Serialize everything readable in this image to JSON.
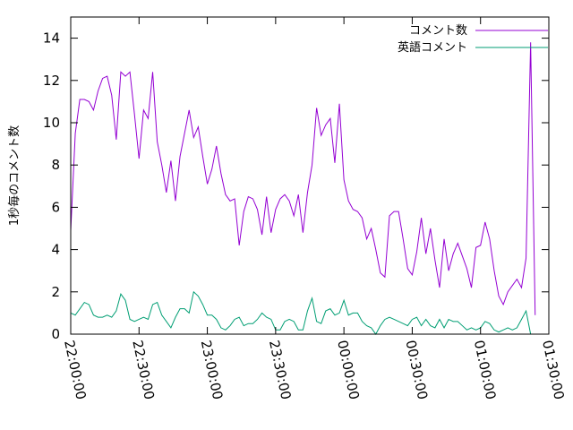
{
  "chart_data": {
    "type": "line",
    "title": "",
    "ylabel": "1秒毎のコメント数",
    "xlabel": "",
    "xlim": [
      "22:00:00",
      "01:30:00"
    ],
    "ylim": [
      0,
      15
    ],
    "x_ticks": [
      "22:00:00",
      "22:30:00",
      "23:00:00",
      "23:30:00",
      "00:00:00",
      "00:30:00",
      "01:00:00",
      "01:30:00"
    ],
    "y_ticks": [
      0,
      2,
      4,
      6,
      8,
      10,
      12,
      14
    ],
    "grid": false,
    "legend_position": "top-right",
    "x_start": "22:00:00",
    "x_step_seconds": 120,
    "series": [
      {
        "name": "コメント数",
        "color": "#9400d3",
        "values": [
          4.9,
          9.5,
          11.1,
          11.1,
          11.0,
          10.6,
          11.5,
          12.1,
          12.2,
          11.3,
          9.2,
          12.4,
          12.2,
          12.4,
          10.4,
          8.3,
          10.6,
          10.2,
          12.4,
          9.1,
          8.0,
          6.7,
          8.2,
          6.3,
          8.4,
          9.5,
          10.6,
          9.3,
          9.8,
          8.4,
          7.1,
          7.8,
          8.9,
          7.6,
          6.6,
          6.3,
          6.4,
          4.2,
          5.8,
          6.5,
          6.4,
          5.9,
          4.7,
          6.5,
          4.8,
          5.9,
          6.4,
          6.6,
          6.3,
          5.6,
          6.6,
          4.8,
          6.7,
          8.0,
          10.7,
          9.4,
          9.9,
          10.2,
          8.1,
          10.9,
          7.3,
          6.3,
          5.9,
          5.8,
          5.5,
          4.5,
          5.0,
          4.0,
          2.9,
          2.7,
          5.6,
          5.8,
          5.8,
          4.5,
          3.1,
          2.8,
          3.9,
          5.5,
          3.8,
          5.0,
          3.5,
          2.2,
          4.5,
          3.0,
          3.8,
          4.3,
          3.7,
          3.1,
          2.2,
          4.1,
          4.2,
          5.3,
          4.5,
          3.0,
          1.8,
          1.4,
          2.0,
          2.3,
          2.6,
          2.2,
          3.6,
          13.8,
          0.9
        ]
      },
      {
        "name": "英語コメント",
        "color": "#009e73",
        "values": [
          1.0,
          0.9,
          1.2,
          1.5,
          1.4,
          0.9,
          0.8,
          0.8,
          0.9,
          0.8,
          1.1,
          1.9,
          1.6,
          0.7,
          0.6,
          0.7,
          0.8,
          0.7,
          1.4,
          1.5,
          0.9,
          0.6,
          0.3,
          0.8,
          1.2,
          1.2,
          1.0,
          2.0,
          1.8,
          1.4,
          0.9,
          0.9,
          0.7,
          0.3,
          0.2,
          0.4,
          0.7,
          0.8,
          0.4,
          0.5,
          0.5,
          0.7,
          1.0,
          0.8,
          0.7,
          0.2,
          0.2,
          0.6,
          0.7,
          0.6,
          0.2,
          0.2,
          1.1,
          1.7,
          0.6,
          0.5,
          1.1,
          1.2,
          0.9,
          1.0,
          1.6,
          0.9,
          1.0,
          1.0,
          0.6,
          0.4,
          0.3,
          0.0,
          0.4,
          0.7,
          0.8,
          0.7,
          0.6,
          0.5,
          0.4,
          0.7,
          0.8,
          0.4,
          0.7,
          0.4,
          0.3,
          0.7,
          0.3,
          0.7,
          0.6,
          0.6,
          0.4,
          0.2,
          0.3,
          0.2,
          0.3,
          0.6,
          0.5,
          0.2,
          0.1,
          0.2,
          0.3,
          0.2,
          0.3,
          0.7,
          1.1,
          0.0
        ]
      }
    ]
  }
}
